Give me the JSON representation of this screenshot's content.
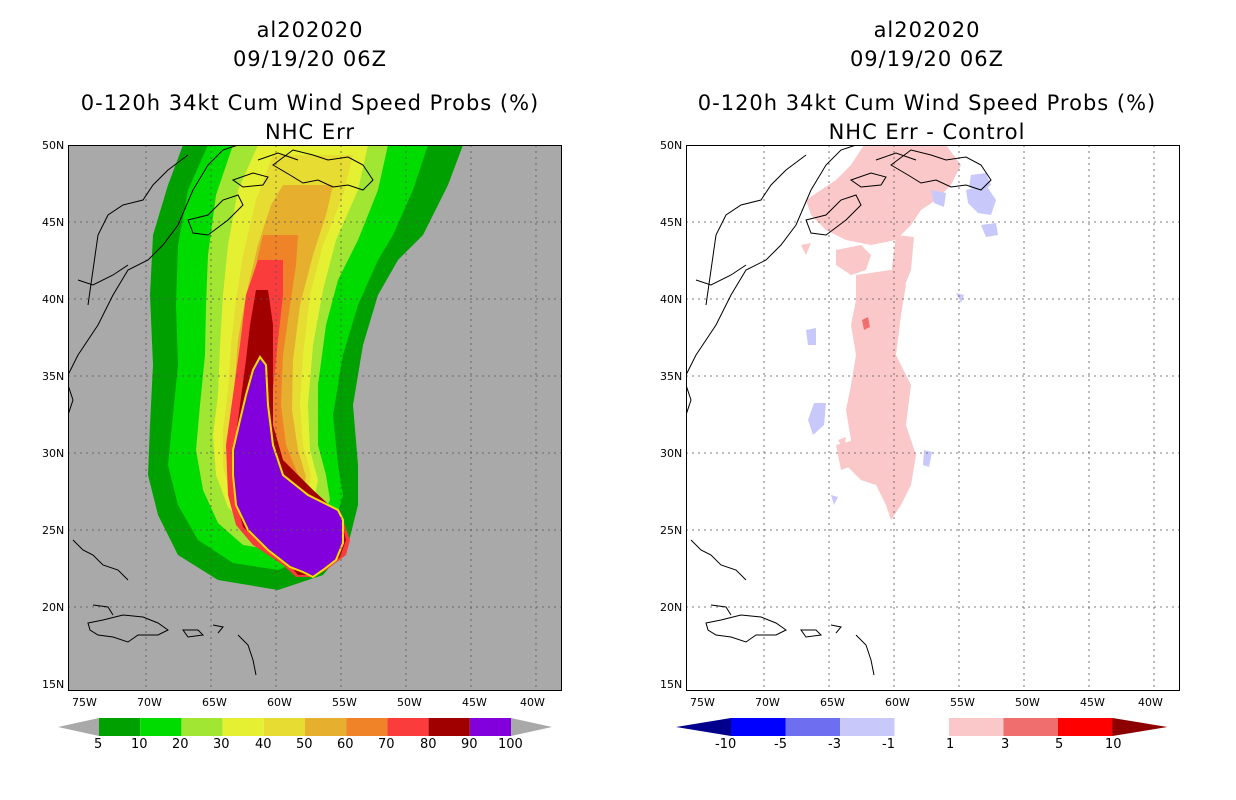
{
  "left_panel": {
    "storm_id": "al202020",
    "datetime": "09/19/20 06Z",
    "product": "0-120h 34kt Cum Wind Speed Probs (%)",
    "subtitle": "NHC Err",
    "background_color": "#a9a9a9",
    "colorbar": {
      "ticks": [
        "5",
        "10",
        "20",
        "30",
        "40",
        "50",
        "60",
        "70",
        "80",
        "90",
        "100"
      ],
      "colors": [
        "#00a000",
        "#00dc00",
        "#a0e632",
        "#e6f032",
        "#e6dc32",
        "#e6af2d",
        "#f08228",
        "#fa3c3c",
        "#a00000",
        "#8200dc"
      ]
    }
  },
  "right_panel": {
    "storm_id": "al202020",
    "datetime": "09/19/20 06Z",
    "product": "0-120h 34kt Cum Wind Speed Probs (%)",
    "subtitle": "NHC Err - Control",
    "background_color": "#ffffff",
    "colorbar": {
      "ticks": [
        "-10",
        "-5",
        "-3",
        "-1",
        "1",
        "3",
        "5",
        "10"
      ],
      "colors": [
        "#00008c",
        "#0000ff",
        "#6e6ef0",
        "#c8c8fa",
        "#ffffff",
        "#fac8c8",
        "#f06e6e",
        "#ff0000",
        "#8c0000"
      ]
    }
  },
  "axes": {
    "lat_labels": [
      "50N",
      "45N",
      "40N",
      "35N",
      "30N",
      "25N",
      "20N",
      "15N"
    ],
    "lon_labels": [
      "75W",
      "70W",
      "65W",
      "60W",
      "55W",
      "50W",
      "45W",
      "40W"
    ]
  }
}
